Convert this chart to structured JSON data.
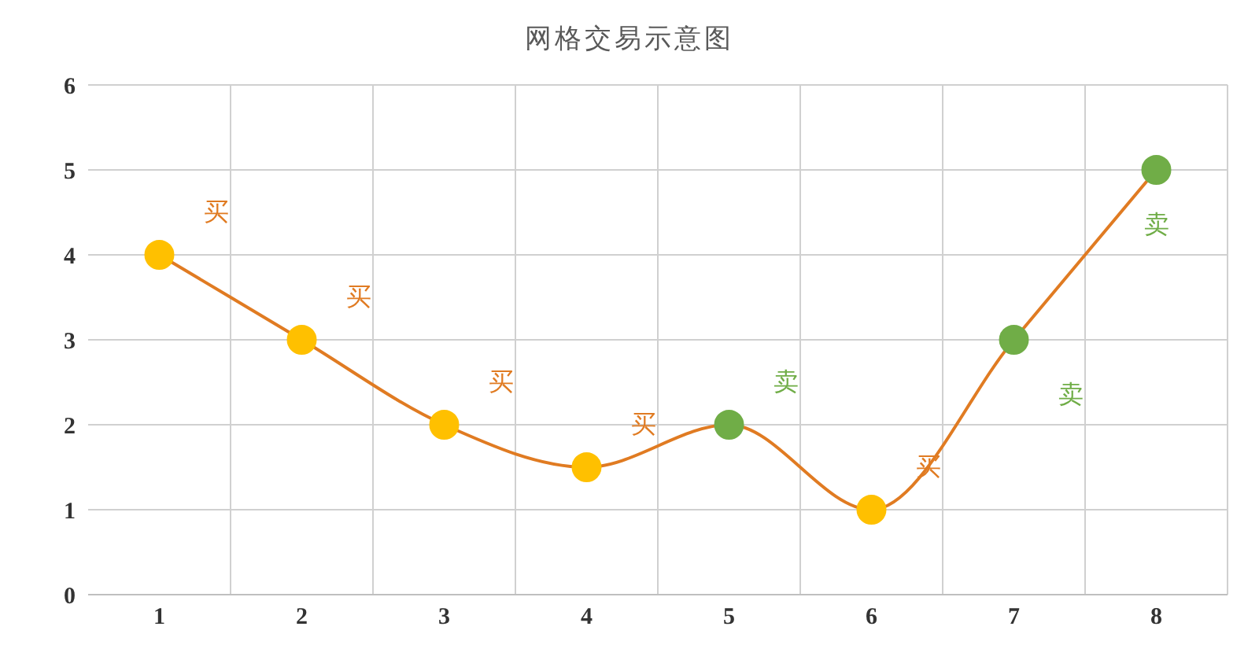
{
  "chart_data": {
    "type": "line",
    "title": "网格交易示意图",
    "categories": [
      "1",
      "2",
      "3",
      "4",
      "5",
      "6",
      "7",
      "8"
    ],
    "series": [
      {
        "color": "#e07b22",
        "colors": [
          "#ffc000",
          "#ffc000",
          "#ffc000",
          "#ffc000",
          "#70ad47",
          "#ffc000",
          "#70ad47",
          "#70ad47"
        ],
        "values": [
          4,
          3,
          2,
          1.5,
          2,
          1,
          3,
          5
        ]
      }
    ],
    "ylim": [
      0,
      6
    ],
    "yticks": [
      0,
      1,
      2,
      3,
      4,
      5,
      6
    ],
    "grid": true,
    "marker": "circle",
    "annotations": [
      "买",
      "买",
      "买",
      "买",
      "卖",
      "买",
      "卖",
      "卖"
    ]
  }
}
